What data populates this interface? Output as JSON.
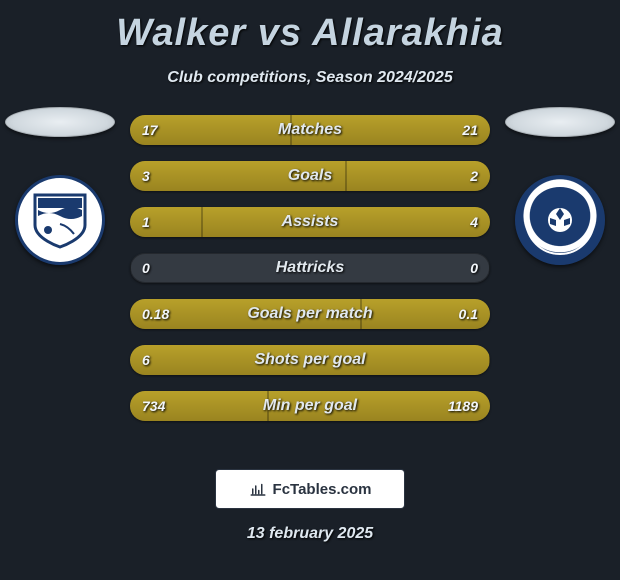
{
  "header": {
    "player_left": "Walker",
    "vs": "vs",
    "player_right": "Allarakhia",
    "subtitle": "Club competitions, Season 2024/2025",
    "title_color": "#c5d4e0",
    "title_fontsize": 38
  },
  "club_left": {
    "name": "southend-united"
  },
  "club_right": {
    "name": "rochdale-afc"
  },
  "stats": {
    "bar_track_color": "#343a42",
    "bar_fill_color_left": "#b8a02a",
    "bar_fill_color_right": "#9a8420",
    "label_fontsize": 16,
    "value_fontsize": 14,
    "rows": [
      {
        "label": "Matches",
        "left_value": "17",
        "right_value": "21",
        "left_pct": 44.7,
        "right_pct": 55.3
      },
      {
        "label": "Goals",
        "left_value": "3",
        "right_value": "2",
        "left_pct": 60.0,
        "right_pct": 40.0
      },
      {
        "label": "Assists",
        "left_value": "1",
        "right_value": "4",
        "left_pct": 20.0,
        "right_pct": 80.0
      },
      {
        "label": "Hattricks",
        "left_value": "0",
        "right_value": "0",
        "left_pct": 0.0,
        "right_pct": 0.0
      },
      {
        "label": "Goals per match",
        "left_value": "0.18",
        "right_value": "0.1",
        "left_pct": 64.3,
        "right_pct": 35.7
      },
      {
        "label": "Shots per goal",
        "left_value": "6",
        "right_value": "",
        "left_pct": 100.0,
        "right_pct": 0.0
      },
      {
        "label": "Min per goal",
        "left_value": "734",
        "right_value": "1189",
        "left_pct": 38.2,
        "right_pct": 61.8
      }
    ]
  },
  "brand": {
    "text": "FcTables.com"
  },
  "footer": {
    "date": "13 february 2025"
  },
  "colors": {
    "page_bg": "#1a2028",
    "text": "#dfe8f0",
    "crest_blue": "#1a3a6e",
    "white": "#ffffff"
  }
}
